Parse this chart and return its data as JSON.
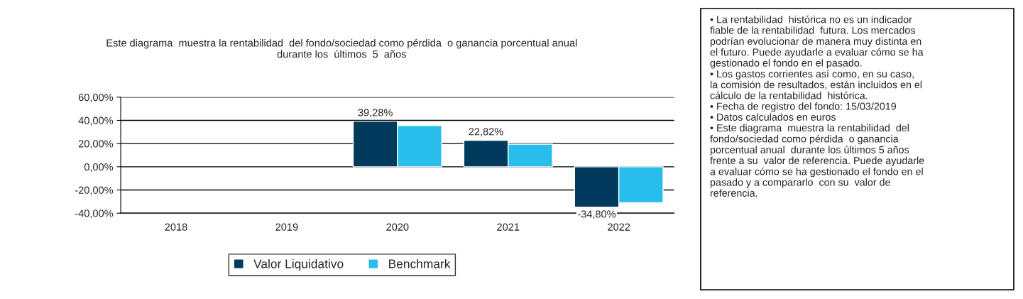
{
  "chart_data": {
    "type": "bar",
    "title": "Este diagrama  muestra la rentabilidad  del fondo/sociedad como pérdida  o ganancia porcentual anual\ndurante los  últimos  5  años",
    "categories": [
      "2018",
      "2019",
      "2020",
      "2021",
      "2022"
    ],
    "series": [
      {
        "name": "Valor Liquidativo",
        "color": "#003a5d",
        "values": [
          null,
          null,
          39.28,
          22.82,
          -34.8
        ],
        "value_labels": [
          null,
          null,
          "39,28%",
          "22,82%",
          "-34,80%"
        ]
      },
      {
        "name": "Benchmark",
        "color": "#29bdeb",
        "values": [
          null,
          null,
          35.5,
          19.5,
          -31
        ]
      }
    ],
    "ylim": [
      -40,
      60
    ],
    "yticks": [
      {
        "value": -40,
        "label": "-40,00%"
      },
      {
        "value": -20,
        "label": "-20,00%"
      },
      {
        "value": 0,
        "label": "0,00%"
      },
      {
        "value": 20,
        "label": "20,00%"
      },
      {
        "value": 40,
        "label": "40,00%"
      },
      {
        "value": 60,
        "label": "60,00%"
      }
    ],
    "grid": "y",
    "legend": "bottom",
    "annotations": [
      "• La rentabilidad  histórica no es un indicador\nfiable de la rentabilidad  futura. Los mercados\npodrían evolucionar de manera muy distinta en\nel futuro. Puede ayudarle a evaluar cómo se ha\ngestionado el fondo en el pasado.\n• Los gastos corrientes así como, en su caso,\nla comisión de resultados, están incluidos en el\ncálculo de la rentabilidad  histórica.\n• Fecha de registro del fondo: 15/03/2019\n• Datos calculados en euros\n• Este diagrama  muestra la rentabilidad  del\nfondo/sociedad como pérdida  o ganancia\nporcentual anual  durante los últimos 5 años\nfrente a su  valor de referencia. Puede ayudarle\na evaluar cómo se ha gestionado el fondo en el\npasado y a compararlo  con su  valor de\nreferencia."
    ]
  }
}
